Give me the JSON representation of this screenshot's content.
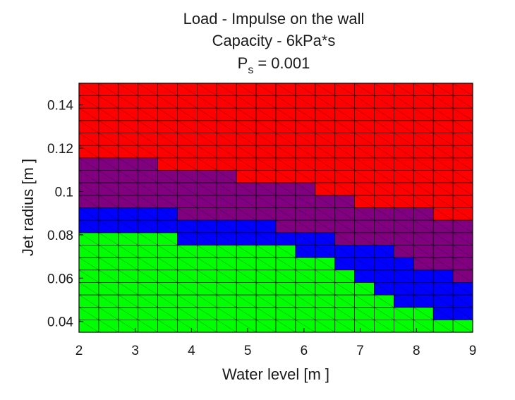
{
  "chart_data": {
    "type": "heatmap",
    "title_lines": [
      "Load - Impulse on the wall",
      "Capacity - 6kPa*s"
    ],
    "title_ps": {
      "symbol": "P",
      "subscript": "s",
      "value": "= 0.001"
    },
    "xlabel": "Water level  [m ]",
    "ylabel": "Jet radius  [m ]",
    "xlim": [
      2,
      9
    ],
    "ylim": [
      0.035,
      0.15
    ],
    "xticks": [
      "2",
      "3",
      "4",
      "5",
      "6",
      "7",
      "8",
      "9"
    ],
    "yticks": [
      "0.04",
      "0.06",
      "0.08",
      "0.1",
      "0.12",
      "0.14"
    ],
    "grid_cols": 20,
    "grid_rows": 20,
    "colors": {
      "red": "#ff0000",
      "purple": "#800080",
      "blue": "#0000ff",
      "green": "#00ff00",
      "grid": "#000000"
    },
    "region_boundaries": {
      "description_of_classes": [
        "green",
        "blue",
        "purple",
        "red"
      ],
      "green_max_row_by_col": [
        7,
        7,
        7,
        7,
        7,
        6,
        6,
        6,
        6,
        6,
        6,
        5,
        5,
        4,
        3,
        2,
        1,
        1,
        0,
        0
      ],
      "blue_max_row_by_col": [
        9,
        9,
        9,
        9,
        9,
        8,
        8,
        8,
        8,
        8,
        7,
        7,
        7,
        6,
        6,
        6,
        5,
        4,
        4,
        3
      ],
      "purple_max_row_by_col": [
        13,
        13,
        13,
        13,
        12,
        12,
        12,
        12,
        11,
        11,
        11,
        11,
        10,
        10,
        9,
        9,
        9,
        9,
        8,
        8
      ]
    }
  }
}
